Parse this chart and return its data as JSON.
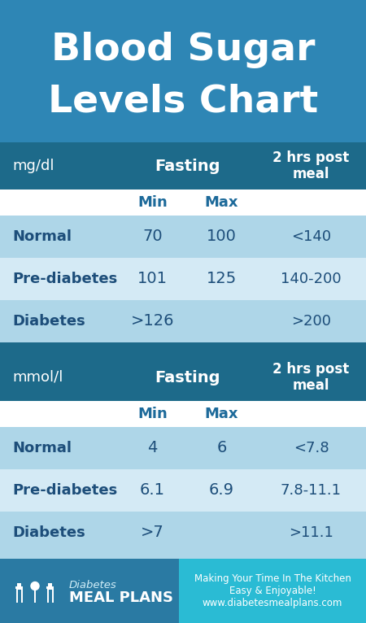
{
  "title_line1": "Blood Sugar",
  "title_line2": "Levels Chart",
  "title_bg": "#2e86b5",
  "title_text_color": "#ffffff",
  "outer_bg": "#1d6a8a",
  "subheader_bg": "#ffffff",
  "row_color_alt1": "#aed6e8",
  "row_color_alt2": "#d4eaf5",
  "footer_left_bg": "#2a7aa3",
  "footer_right_bg": "#2abbd4",
  "footer_strip_bg": "#aed6e8",
  "table_border_color": "#7bbcd5",
  "header_text_color": "#ffffff",
  "label_text_color": "#1d4e7a",
  "data_text_color": "#1d4e7a",
  "subheader_text_color": "#1d6a9a",
  "table1": {
    "unit": "mg/dl",
    "rows": [
      [
        "Normal",
        "70",
        "100",
        "<140"
      ],
      [
        "Pre-diabetes",
        "101",
        "125",
        "140-200"
      ],
      [
        "Diabetes",
        ">126",
        "",
        ">200"
      ]
    ]
  },
  "table2": {
    "unit": "mmol/l",
    "rows": [
      [
        "Normal",
        "4",
        "6",
        "<7.8"
      ],
      [
        "Pre-diabetes",
        "6.1",
        "6.9",
        "7.8-11.1"
      ],
      [
        "Diabetes",
        ">7",
        "",
        ">11.1"
      ]
    ]
  },
  "footer_logo_text1": "Diabetes",
  "footer_logo_text2": "MEAL PLANS",
  "footer_right_text": "Making Your Time In The Kitchen\nEasy & Enjoyable!\nwww.diabetesmealplans.com"
}
